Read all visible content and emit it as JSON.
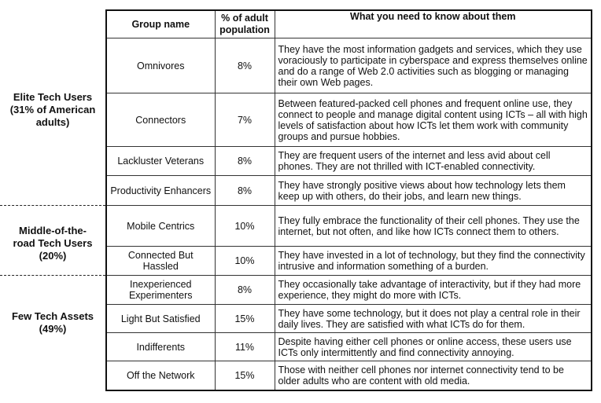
{
  "table": {
    "headers": {
      "group_name": "Group name",
      "pct_adult": "% of adult population",
      "what_to_know": "What you need to know about them"
    },
    "rows": [
      {
        "name": "Omnivores",
        "pct": "8%",
        "desc": "They have the most information gadgets and services, which they use voraciously to participate in cyberspace and express themselves online and do a range of Web 2.0 activities such as blogging or managing their own Web pages."
      },
      {
        "name": "Connectors",
        "pct": "7%",
        "desc": "Between featured-packed cell phones and frequent online use, they connect to people and manage digital content using ICTs – all with high levels of satisfaction about how ICTs let them work with community groups and pursue hobbies."
      },
      {
        "name": "Lackluster Veterans",
        "pct": "8%",
        "desc": "They are frequent users of the internet and less avid about cell phones. They are not thrilled with ICT-enabled connectivity."
      },
      {
        "name": "Productivity Enhancers",
        "pct": "8%",
        "desc": "They have strongly positive views about how technology lets them keep up with others, do their jobs, and learn new things."
      },
      {
        "name": "Mobile Centrics",
        "pct": "10%",
        "desc": "They fully embrace the functionality of their cell phones. They use the internet, but not often, and like how ICTs connect them to others."
      },
      {
        "name": "Connected But Hassled",
        "pct": "10%",
        "desc": "They have invested in a lot of technology, but they find the connectivity intrusive and information something of a burden."
      },
      {
        "name": "Inexperienced Experimenters",
        "pct": "8%",
        "desc": "They occasionally take advantage of interactivity, but if they had more experience, they might do more with ICTs."
      },
      {
        "name": "Light But Satisfied",
        "pct": "15%",
        "desc": "They have some technology, but it does not play a central role in their daily lives. They are satisfied with what ICTs do for them."
      },
      {
        "name": "Indifferents",
        "pct": "11%",
        "desc": "Despite having either cell phones or online access, these users use ICTs only intermittently and find connectivity annoying."
      },
      {
        "name": "Off the Network",
        "pct": "15%",
        "desc": "Those with neither cell phones nor internet connectivity tend to be older adults who are content with old media."
      }
    ]
  },
  "groups": [
    {
      "label": "Elite Tech Users (31% of American adults)"
    },
    {
      "label": "Middle-of-the-road Tech Users (20%)"
    },
    {
      "label": "Few Tech Assets (49%)"
    }
  ]
}
